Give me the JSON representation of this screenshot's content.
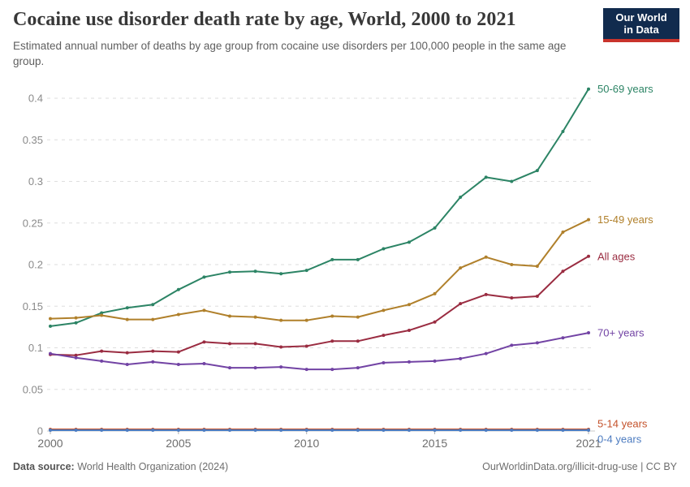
{
  "header": {
    "title": "Cocaine use disorder death rate by age, World, 2000 to 2021",
    "subtitle": "Estimated annual number of deaths by age group from cocaine use disorders per 100,000 people in the same age group."
  },
  "logo": {
    "line1": "Our World",
    "line2": "in Data",
    "bg_color": "#112B4E",
    "stripe_color": "#C9342C"
  },
  "footer": {
    "source_label": "Data source:",
    "source_value": " World Health Organization (2024)",
    "credit": "OurWorldinData.org/illicit-drug-use | CC BY"
  },
  "chart_data": {
    "type": "line",
    "title": "Cocaine use disorder death rate by age, World, 2000 to 2021",
    "xlabel": "",
    "ylabel": "",
    "x": [
      2000,
      2001,
      2002,
      2003,
      2004,
      2005,
      2006,
      2007,
      2008,
      2009,
      2010,
      2011,
      2012,
      2013,
      2014,
      2015,
      2016,
      2017,
      2018,
      2019,
      2020,
      2021
    ],
    "x_ticks": [
      2000,
      2005,
      2010,
      2015,
      2021
    ],
    "y_ticks": [
      "0",
      "0.05",
      "0.1",
      "0.15",
      "0.2",
      "0.25",
      "0.3",
      "0.35",
      "0.4"
    ],
    "ylim": [
      0,
      0.4
    ],
    "xlim": [
      2000,
      2021
    ],
    "grid": "horizontal-dashed",
    "legend_position": "end-of-line-labels",
    "series": [
      {
        "name": "50-69 years",
        "color": "#2C8465",
        "label_dy": 0,
        "values": [
          0.126,
          0.13,
          0.142,
          0.148,
          0.152,
          0.17,
          0.185,
          0.191,
          0.192,
          0.189,
          0.193,
          0.206,
          0.206,
          0.219,
          0.227,
          0.244,
          0.281,
          0.305,
          0.3,
          0.313,
          0.36,
          0.411
        ]
      },
      {
        "name": "15-49 years",
        "color": "#B0802B",
        "label_dy": 0,
        "values": [
          0.135,
          0.136,
          0.139,
          0.134,
          0.134,
          0.14,
          0.145,
          0.138,
          0.137,
          0.133,
          0.133,
          0.138,
          0.137,
          0.145,
          0.152,
          0.165,
          0.196,
          0.209,
          0.2,
          0.198,
          0.239,
          0.254
        ]
      },
      {
        "name": "All ages",
        "color": "#9A2C41",
        "label_dy": 0,
        "values": [
          0.092,
          0.091,
          0.096,
          0.094,
          0.096,
          0.095,
          0.107,
          0.105,
          0.105,
          0.101,
          0.102,
          0.108,
          0.108,
          0.115,
          0.121,
          0.131,
          0.153,
          0.164,
          0.16,
          0.162,
          0.192,
          0.21
        ]
      },
      {
        "name": "70+ years",
        "color": "#7243A4",
        "label_dy": 0,
        "values": [
          0.093,
          0.088,
          0.084,
          0.08,
          0.083,
          0.08,
          0.081,
          0.076,
          0.076,
          0.077,
          0.074,
          0.074,
          0.076,
          0.082,
          0.083,
          0.084,
          0.087,
          0.093,
          0.103,
          0.106,
          0.112,
          0.118
        ]
      },
      {
        "name": "5-14 years",
        "color": "#C4522B",
        "label_dy": -7,
        "values": [
          0.002,
          0.002,
          0.002,
          0.002,
          0.002,
          0.002,
          0.002,
          0.002,
          0.002,
          0.002,
          0.002,
          0.002,
          0.002,
          0.002,
          0.002,
          0.002,
          0.002,
          0.002,
          0.002,
          0.002,
          0.002,
          0.002
        ]
      },
      {
        "name": "0-4 years",
        "color": "#4C7BC0",
        "label_dy": 11,
        "values": [
          0.001,
          0.001,
          0.001,
          0.001,
          0.001,
          0.001,
          0.001,
          0.001,
          0.001,
          0.001,
          0.001,
          0.001,
          0.001,
          0.001,
          0.001,
          0.001,
          0.001,
          0.001,
          0.001,
          0.001,
          0.001,
          0.001
        ]
      }
    ],
    "style": {
      "grid_color": "#DEDEDE",
      "zero_line_color": "#C8C8C8",
      "axis_label_color": "#8A8A8A",
      "x_label_color": "#6E6E6E",
      "tick_color": "#AFAFAF"
    }
  }
}
